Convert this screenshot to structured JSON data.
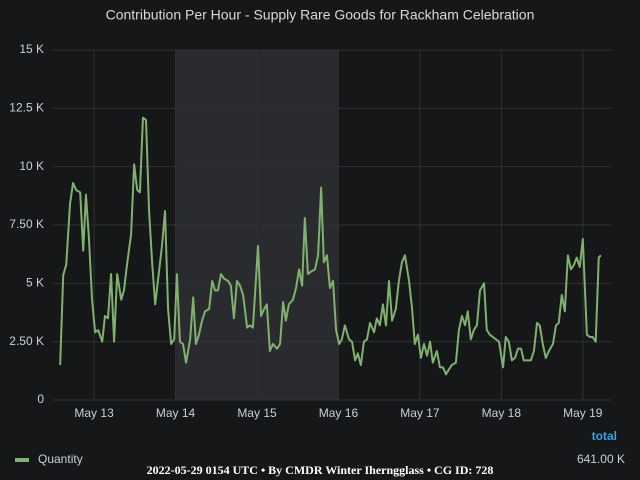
{
  "chart_data": {
    "type": "line",
    "title": "Contribution Per Hour - Supply Rare Goods for Rackham Celebration",
    "caption": "2022-05-29 0154 UTC • By CMDR Winter Iherngglass • CG ID: 728",
    "legend": {
      "header": "total"
    },
    "grid": true,
    "region": [
      48,
      96
    ],
    "xlim": [
      11.6,
      176.6
    ],
    "xticks": [
      {
        "value": 24,
        "label": "May 13"
      },
      {
        "value": 48,
        "label": "May 14"
      },
      {
        "value": 72,
        "label": "May 15"
      },
      {
        "value": 96,
        "label": "May 16"
      },
      {
        "value": 120,
        "label": "May 17"
      },
      {
        "value": 144,
        "label": "May 18"
      },
      {
        "value": 168,
        "label": "May 19"
      }
    ],
    "ylim": [
      0,
      15000
    ],
    "yticks": [
      0,
      {
        "value": 2500,
        "label": "2.50 K"
      },
      {
        "value": 5000,
        "label": "5 K"
      },
      {
        "value": 7500,
        "label": "7.50 K"
      },
      {
        "value": 10000,
        "label": "10 K"
      },
      {
        "value": 12500,
        "label": "12.5 K"
      },
      {
        "value": 15000,
        "label": "15 K"
      }
    ],
    "x": [
      14.0,
      14.9,
      15.8,
      16.9,
      17.8,
      18.7,
      19.9,
      20.8,
      21.6,
      22.5,
      23.4,
      24.3,
      25.2,
      26.4,
      27.2,
      28.1,
      29.0,
      29.9,
      30.8,
      32.0,
      32.8,
      33.7,
      34.9,
      35.8,
      36.7,
      37.5,
      38.4,
      39.3,
      40.2,
      41.1,
      42.0,
      42.8,
      44.0,
      44.9,
      45.8,
      46.7,
      47.6,
      48.4,
      49.3,
      50.2,
      51.1,
      52.3,
      53.2,
      54.0,
      54.9,
      55.8,
      56.7,
      57.9,
      58.8,
      59.6,
      60.5,
      61.4,
      62.3,
      63.5,
      64.3,
      65.2,
      66.1,
      67.0,
      67.9,
      69.1,
      69.9,
      70.8,
      72.3,
      73.2,
      74.1,
      74.9,
      75.8,
      76.7,
      77.9,
      78.8,
      79.7,
      80.5,
      81.4,
      82.6,
      83.5,
      84.4,
      85.3,
      86.1,
      87.0,
      87.9,
      89.1,
      90.0,
      90.9,
      91.7,
      92.6,
      93.5,
      94.4,
      95.3,
      96.2,
      97.0,
      97.9,
      99.1,
      100.0,
      100.9,
      101.7,
      102.6,
      103.5,
      104.4,
      105.3,
      106.5,
      107.3,
      108.2,
      109.1,
      110.0,
      110.9,
      111.8,
      112.9,
      113.8,
      114.7,
      115.6,
      116.8,
      117.7,
      118.5,
      119.4,
      120.3,
      121.2,
      122.1,
      123.0,
      123.8,
      125.0,
      125.9,
      126.8,
      127.7,
      128.5,
      129.4,
      130.6,
      131.5,
      132.4,
      133.3,
      134.1,
      135.0,
      135.9,
      136.8,
      137.7,
      138.9,
      139.7,
      140.6,
      141.5,
      142.4,
      143.3,
      144.5,
      145.3,
      146.2,
      147.1,
      148.0,
      148.9,
      149.8,
      150.6,
      151.8,
      152.7,
      153.6,
      154.5,
      155.3,
      156.2,
      157.1,
      158.0,
      159.2,
      160.1,
      160.9,
      161.8,
      162.7,
      163.6,
      164.5,
      165.4,
      166.2,
      167.1,
      168.0,
      169.2,
      170.1,
      170.9,
      171.8,
      172.7,
      173.3
    ],
    "series": [
      {
        "name": "Quantity",
        "color": "#7eb26d",
        "total": {
          "value": 641000,
          "label": "641.00 K"
        },
        "values": [
          1500,
          5350,
          5800,
          8400,
          9300,
          9000,
          8900,
          6400,
          8800,
          6900,
          4300,
          2900,
          3000,
          2500,
          3600,
          3500,
          5400,
          2500,
          5400,
          4300,
          4700,
          5800,
          7100,
          10100,
          9000,
          8900,
          12100,
          12000,
          8100,
          5900,
          4100,
          5100,
          6600,
          8100,
          3900,
          2400,
          2600,
          5400,
          2500,
          2400,
          1600,
          2600,
          4400,
          2400,
          2800,
          3400,
          3800,
          3900,
          5100,
          4700,
          4700,
          5400,
          5200,
          5100,
          4900,
          3500,
          5100,
          4900,
          4500,
          3100,
          3200,
          3100,
          6600,
          3600,
          3900,
          4100,
          2100,
          2400,
          2200,
          2400,
          4200,
          3400,
          4100,
          4300,
          4800,
          5600,
          4900,
          7800,
          5400,
          5500,
          5600,
          6200,
          9100,
          5900,
          6200,
          4800,
          5100,
          3000,
          2400,
          2600,
          3200,
          2600,
          2500,
          1700,
          2000,
          1500,
          2500,
          2600,
          3300,
          2900,
          3500,
          3200,
          4100,
          3200,
          5100,
          3400,
          3900,
          5100,
          5900,
          6200,
          5100,
          3900,
          2400,
          2800,
          1800,
          2400,
          1900,
          2500,
          1600,
          2100,
          1400,
          1400,
          1100,
          1300,
          1500,
          1600,
          3000,
          3600,
          3200,
          3800,
          2600,
          3000,
          3200,
          4700,
          5000,
          3000,
          2800,
          2700,
          2600,
          2500,
          1400,
          2700,
          2500,
          1700,
          1800,
          2200,
          2200,
          1700,
          1700,
          1700,
          2100,
          3300,
          3200,
          2400,
          1800,
          2100,
          2400,
          3200,
          3300,
          4500,
          3800,
          6200,
          5600,
          5800,
          6100,
          5700,
          6900,
          2800,
          2700,
          2700,
          2500,
          6100,
          6200
        ]
      }
    ]
  }
}
